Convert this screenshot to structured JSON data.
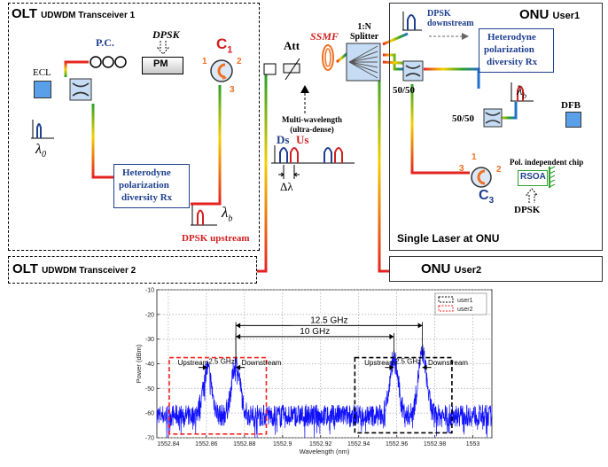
{
  "olt1": {
    "title": "OLT",
    "subtitle": "UDWDM Transceiver 1",
    "ecl": "ECL",
    "lambda0": "λ",
    "lambda0_sub": "0",
    "pc": "P.C.",
    "dpsk": "DPSK",
    "pm": "PM",
    "c1": "C",
    "c1_sub": "1",
    "port1": "1",
    "port2": "2",
    "port3": "3",
    "rx_label": "Heterodyne polarization diversity Rx",
    "rx_lines": [
      "Heterodyne",
      "polarization",
      "diversity Rx"
    ],
    "lambda_b": "λ",
    "lambda_b_sub": "b",
    "dpsk_upstream": "DPSK upstream"
  },
  "olt2": {
    "title": "OLT",
    "subtitle": "UDWDM Transceiver 2"
  },
  "link": {
    "att": "Att",
    "ssmf": "SSMF",
    "splitter_line1": "1:N",
    "splitter_line2": "Splitter",
    "multiwave_line1": "Multi-wavelength",
    "multiwave_line2": "(ultra-dense)",
    "ds": "Ds",
    "us": "Us",
    "delta_lambda": "Δλ"
  },
  "onu1": {
    "title": "ONU",
    "user": "User1",
    "dpsk_ds_line1": "DPSK",
    "dpsk_ds_line2": "downstream",
    "rx_label": "Heterodyne polarization diversity Rx",
    "rx_lines": [
      "Heterodyne",
      "polarization",
      "diversity Rx"
    ],
    "coupler1": "50/50",
    "coupler2": "50/50",
    "lambda_b": "λ",
    "lambda_b_sub": "b",
    "dfb": "DFB",
    "pol_chip": "Pol. independent chip",
    "rsoa": "RSOA",
    "c3": "C",
    "c3_sub": "3",
    "port1": "1",
    "port2": "2",
    "port3": "3",
    "dpsk": "DPSK",
    "single_laser": "Single Laser at ONU"
  },
  "onu2": {
    "title": "ONU",
    "user": "User2"
  },
  "colors": {
    "upstream_red": "#d21f1f",
    "downstream_blue": "#1f3f8f",
    "spectrum_blue": "#1010ff",
    "circulator_orange": "#f07020",
    "fiber_green": "#2aa02a",
    "fiber_yellow": "#f5d000",
    "fiber_red": "#e52222"
  },
  "chart_data": {
    "type": "line",
    "title": "",
    "xlabel": "Wavelength (nm)",
    "ylabel": "Power (dBm)",
    "xlim": [
      1552.834,
      1553.01
    ],
    "ylim": [
      -70,
      -10
    ],
    "xticks": [
      1552.84,
      1552.86,
      1552.88,
      1552.9,
      1552.92,
      1552.94,
      1552.96,
      1552.98,
      1553
    ],
    "xtick_labels": [
      "1552.84",
      "1552.86",
      "1552.88",
      "1552.9",
      "1552.92",
      "1552.94",
      "1552.96",
      "1552.98",
      "1553"
    ],
    "yticks": [
      -70,
      -60,
      -50,
      -40,
      -30,
      -20,
      -10
    ],
    "ytick_labels": [
      "-70",
      "-60",
      "-50",
      "-40",
      "-30",
      "-20",
      "-10"
    ],
    "grid": true,
    "legend": {
      "placement": "top-right",
      "entries": [
        {
          "name": "user1",
          "color": "#000000",
          "style": "dashed"
        },
        {
          "name": "user2",
          "color": "#ff2020",
          "style": "dashed"
        }
      ]
    },
    "series": [
      {
        "color": "#1010ff",
        "noise_floor": -61,
        "peaks": [
          {
            "x": 1552.8605,
            "y": -42
          },
          {
            "x": 1552.8755,
            "y": -40
          },
          {
            "x": 1552.9585,
            "y": -38
          },
          {
            "x": 1552.9735,
            "y": -36
          }
        ]
      }
    ],
    "regions": [
      {
        "name": "user2",
        "x0": 1552.8405,
        "x1": 1552.8915,
        "y0": -68.5,
        "y1": -37.5,
        "color": "#ff2020"
      },
      {
        "name": "user1",
        "x0": 1552.938,
        "x1": 1552.989,
        "y0": -68,
        "y1": -37.5,
        "color": "#000000"
      }
    ],
    "annotations": [
      {
        "text": "12.5 GHz",
        "type": "span",
        "x0": 1552.8755,
        "x1": 1552.9735,
        "y": -24.5
      },
      {
        "text": "10 GHz",
        "type": "span",
        "x0": 1552.8755,
        "x1": 1552.9585,
        "y": -29
      },
      {
        "text": "2.5 GHz",
        "type": "span",
        "x0": 1552.8605,
        "x1": 1552.8755,
        "y": -41.5
      },
      {
        "text": "2.5 GHz",
        "type": "span",
        "x0": 1552.9585,
        "x1": 1552.9735,
        "y": -41.5
      },
      {
        "text": "Upstream",
        "type": "label",
        "x": 1552.845,
        "y": -40.5
      },
      {
        "text": "Downstream",
        "type": "label",
        "x": 1552.8785,
        "y": -40.5
      },
      {
        "text": "Upstream",
        "type": "label",
        "x": 1552.943,
        "y": -40.5
      },
      {
        "text": "Downstream",
        "type": "label",
        "x": 1552.9765,
        "y": -40.5
      }
    ]
  }
}
